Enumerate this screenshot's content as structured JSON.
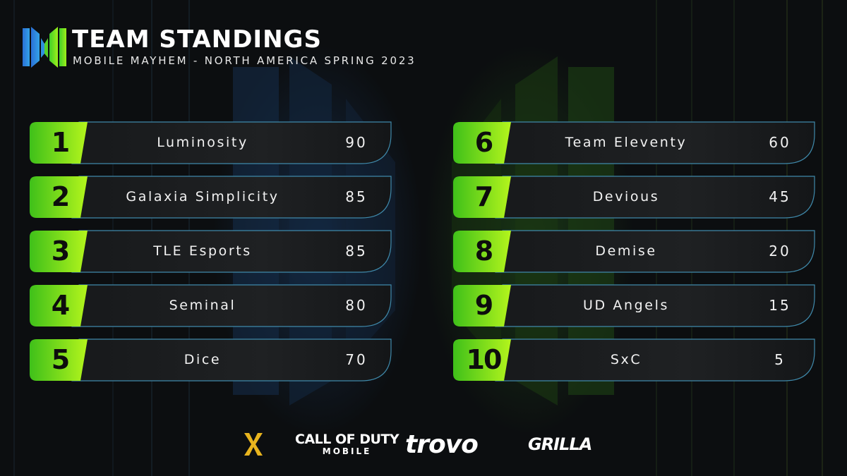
{
  "header": {
    "title": "TEAM STANDINGS",
    "subtitle": "MOBILE MAYHEM - NORTH AMERICA SPRING 2023"
  },
  "colors": {
    "accent_green": "#9ef01a",
    "accent_green_dark": "#3fc01a",
    "plate_dark": "#1c1e20",
    "plate_border": "#4a8fb0",
    "bg": "#0c0e10"
  },
  "standings": [
    {
      "rank": "1",
      "team": "Luminosity",
      "points": "90"
    },
    {
      "rank": "2",
      "team": "Galaxia Simplicity",
      "points": "85"
    },
    {
      "rank": "3",
      "team": "TLE Esports",
      "points": "85"
    },
    {
      "rank": "4",
      "team": "Seminal",
      "points": "80"
    },
    {
      "rank": "5",
      "team": "Dice",
      "points": "70"
    },
    {
      "rank": "6",
      "team": "Team Eleventy",
      "points": "60"
    },
    {
      "rank": "7",
      "team": "Devious",
      "points": "45"
    },
    {
      "rank": "8",
      "team": "Demise",
      "points": "20"
    },
    {
      "rank": "9",
      "team": "UD Angels",
      "points": "15"
    },
    {
      "rank": "10",
      "team": "SxC",
      "points": "5"
    }
  ],
  "sponsors": {
    "mm_logo": "mobile-mayhem-logo-icon",
    "cod_main": "CALL OF DUTY",
    "cod_sub": "MOBILE",
    "trovo": "trovo",
    "grilla": "GRILLA"
  }
}
